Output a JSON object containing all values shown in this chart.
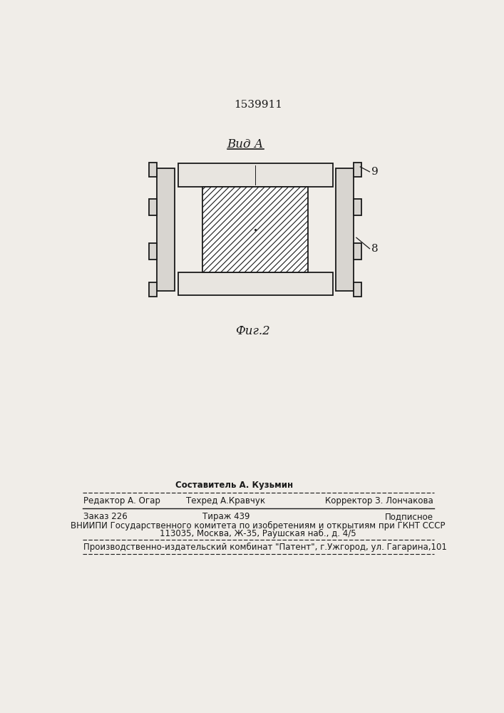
{
  "patent_number": "1539911",
  "view_label": "Вид А",
  "fig_label": "Фиг.2",
  "label_8": "8",
  "label_9": "9",
  "bg_color": "#f0ede8",
  "line_color": "#1a1a1a",
  "footer_line1_col1": "Редактор А. Огар",
  "footer_line1_col2_top": "Составитель А. Кузьмин",
  "footer_line1_col2": "Техред А.Кравчук",
  "footer_line1_col3": "Корректор З. Лончакова",
  "footer_line2_col1": "Заказ 226",
  "footer_line2_col2": "Тираж 439",
  "footer_line2_col3": "Подписное",
  "footer_line3": "ВНИИПИ Государственного комитета по изобретениям и открытиям при ГКНТ СССР",
  "footer_line4": "113035, Москва, Ж-35, Раушская наб., д. 4/5",
  "footer_line5": "Производственно-издательский комбинат \"Патент\", г.Ужгород, ул. Гагарина,101"
}
